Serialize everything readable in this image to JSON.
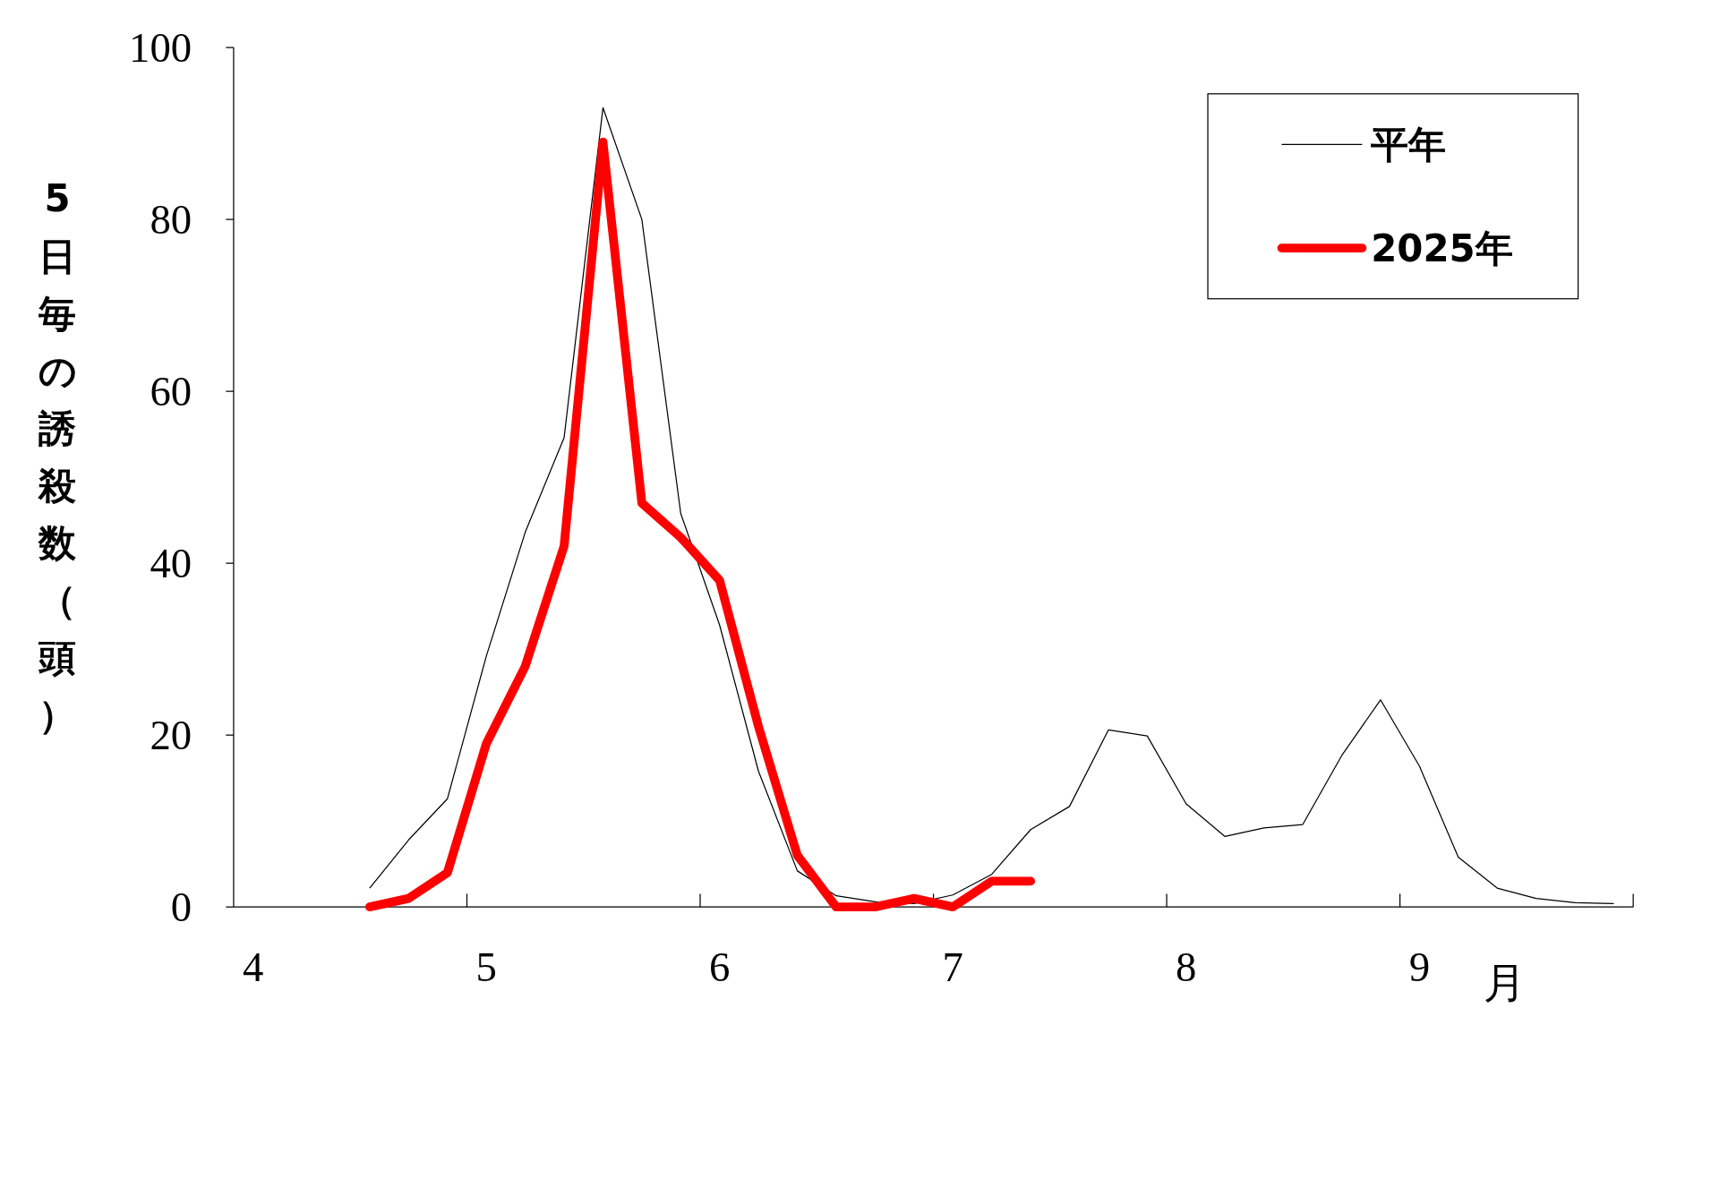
{
  "chart_data": {
    "type": "line",
    "ylabel": "5日毎の誘殺数（頭）",
    "xlabel": "月",
    "categories": [
      "4",
      null,
      null,
      null,
      null,
      null,
      "5",
      null,
      null,
      null,
      null,
      null,
      "6",
      null,
      null,
      null,
      null,
      null,
      "7",
      null,
      null,
      null,
      null,
      null,
      "8",
      null,
      null,
      null,
      null,
      null,
      "9",
      null,
      null,
      null,
      null,
      null
    ],
    "series": [
      {
        "name": "平年",
        "color": "#000000",
        "values": [
          null,
          null,
          null,
          2.2,
          7.8,
          12.6,
          29.2,
          43.6,
          54.6,
          93,
          80,
          45.8,
          32.8,
          15.8,
          4.2,
          1.3,
          0.6,
          0.4,
          1.4,
          3.8,
          9,
          11.7,
          20.6,
          19.9,
          12,
          8.2,
          9.2,
          9.6,
          17.6,
          24.1,
          16.4,
          5.8,
          2.2,
          1,
          0.5,
          0.4
        ]
      },
      {
        "name": "2025年",
        "color": "#ff0000",
        "values": [
          null,
          null,
          null,
          0,
          1,
          4,
          19,
          28,
          42,
          89,
          47,
          43,
          38,
          21,
          6,
          0,
          0,
          1,
          0,
          3,
          3,
          null,
          null,
          null,
          null,
          null,
          null,
          null,
          null,
          null,
          null,
          null,
          null,
          null,
          null,
          null
        ]
      }
    ],
    "ylim": [
      0,
      100
    ],
    "yticks": [
      0,
      20,
      40,
      60,
      80,
      100
    ],
    "legend": "top right"
  }
}
